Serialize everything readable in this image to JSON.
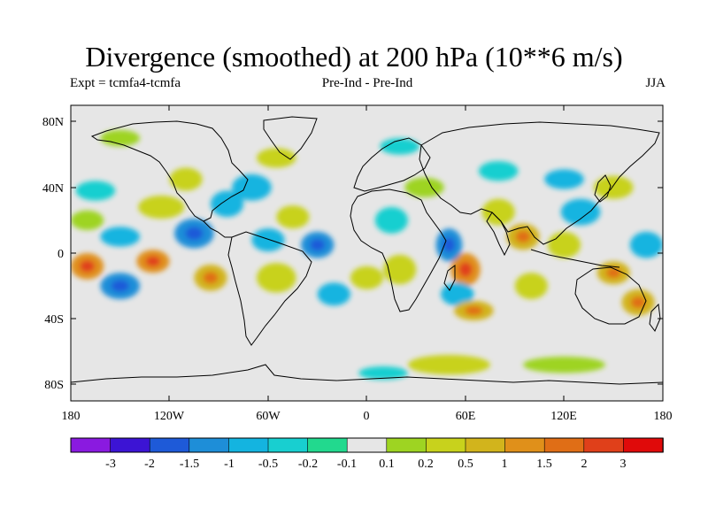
{
  "title": "Divergence (smoothed) at 200 hPa (10**6 m/s)",
  "expt": "Expt = tcmfa4-tcmfa",
  "period": "Pre-Ind - Pre-Ind",
  "season": "JJA",
  "colors": {
    "background": "#e6e6e6",
    "coast": "#000000",
    "scale": [
      "#8a1ae0",
      "#3c14d4",
      "#1e5ad8",
      "#1e8ed8",
      "#14b4e0",
      "#18cfd0",
      "#22d98e",
      "#e6e6e6",
      "#9ed422",
      "#c8d21c",
      "#d2b41c",
      "#e0901a",
      "#e06e16",
      "#e0401a",
      "#e00a0a"
    ]
  },
  "chart_data": {
    "type": "heatmap",
    "field": "200 hPa divergence anomaly (smoothed)",
    "units": "10**6 m/s",
    "x_ticks": [
      "180",
      "120W",
      "60W",
      "0",
      "60E",
      "120E",
      "180"
    ],
    "y_ticks": [
      "80N",
      "40N",
      "0",
      "40S",
      "80S"
    ],
    "xlim": [
      -180,
      180
    ],
    "ylim": [
      -90,
      90
    ],
    "colorbar_levels": [
      "-3",
      "-2",
      "-1.5",
      "-1",
      "-0.5",
      "-0.2",
      "-0.1",
      "0.1",
      "0.2",
      "0.5",
      "1",
      "1.5",
      "2",
      "3"
    ],
    "blobs": [
      {
        "lon": -170,
        "lat": -8,
        "rx": 10,
        "ry": 8,
        "v": 1.5
      },
      {
        "lon": -150,
        "lat": -20,
        "rx": 12,
        "ry": 8,
        "v": -1
      },
      {
        "lon": -130,
        "lat": -5,
        "rx": 10,
        "ry": 7,
        "v": 1.5
      },
      {
        "lon": -150,
        "lat": 10,
        "rx": 12,
        "ry": 6,
        "v": -0.5
      },
      {
        "lon": -125,
        "lat": 28,
        "rx": 14,
        "ry": 7,
        "v": 0.5
      },
      {
        "lon": -165,
        "lat": 38,
        "rx": 12,
        "ry": 6,
        "v": -0.2
      },
      {
        "lon": -170,
        "lat": 20,
        "rx": 10,
        "ry": 6,
        "v": 0.2
      },
      {
        "lon": -105,
        "lat": 12,
        "rx": 12,
        "ry": 9,
        "v": -1
      },
      {
        "lon": -95,
        "lat": -15,
        "rx": 10,
        "ry": 8,
        "v": 1
      },
      {
        "lon": -85,
        "lat": 30,
        "rx": 10,
        "ry": 8,
        "v": -0.5
      },
      {
        "lon": -110,
        "lat": 45,
        "rx": 10,
        "ry": 7,
        "v": 0.5
      },
      {
        "lon": -60,
        "lat": 8,
        "rx": 10,
        "ry": 7,
        "v": -0.5
      },
      {
        "lon": -55,
        "lat": -15,
        "rx": 12,
        "ry": 9,
        "v": 0.5
      },
      {
        "lon": -45,
        "lat": 22,
        "rx": 10,
        "ry": 7,
        "v": 0.5
      },
      {
        "lon": -70,
        "lat": 40,
        "rx": 12,
        "ry": 8,
        "v": -0.5
      },
      {
        "lon": -55,
        "lat": 58,
        "rx": 12,
        "ry": 6,
        "v": 0.5
      },
      {
        "lon": -30,
        "lat": 5,
        "rx": 10,
        "ry": 8,
        "v": -1
      },
      {
        "lon": -20,
        "lat": -25,
        "rx": 10,
        "ry": 7,
        "v": -0.5
      },
      {
        "lon": 0,
        "lat": -15,
        "rx": 10,
        "ry": 7,
        "v": 0.5
      },
      {
        "lon": 20,
        "lat": -10,
        "rx": 10,
        "ry": 9,
        "v": 0.5
      },
      {
        "lon": 15,
        "lat": 20,
        "rx": 10,
        "ry": 8,
        "v": -0.2
      },
      {
        "lon": 35,
        "lat": 40,
        "rx": 12,
        "ry": 6,
        "v": 0.2
      },
      {
        "lon": 60,
        "lat": -10,
        "rx": 9,
        "ry": 10,
        "v": 1.5
      },
      {
        "lon": 50,
        "lat": 5,
        "rx": 8,
        "ry": 10,
        "v": -1
      },
      {
        "lon": 55,
        "lat": -25,
        "rx": 10,
        "ry": 7,
        "v": -0.5
      },
      {
        "lon": 65,
        "lat": -35,
        "rx": 12,
        "ry": 6,
        "v": 1
      },
      {
        "lon": 80,
        "lat": 25,
        "rx": 10,
        "ry": 8,
        "v": 0.5
      },
      {
        "lon": 95,
        "lat": 10,
        "rx": 10,
        "ry": 8,
        "v": 1
      },
      {
        "lon": 100,
        "lat": -20,
        "rx": 10,
        "ry": 8,
        "v": 0.5
      },
      {
        "lon": 130,
        "lat": 25,
        "rx": 12,
        "ry": 8,
        "v": -0.5
      },
      {
        "lon": 120,
        "lat": 5,
        "rx": 10,
        "ry": 8,
        "v": 0.5
      },
      {
        "lon": 150,
        "lat": -12,
        "rx": 10,
        "ry": 7,
        "v": 1
      },
      {
        "lon": 170,
        "lat": 5,
        "rx": 10,
        "ry": 8,
        "v": -0.5
      },
      {
        "lon": 165,
        "lat": -30,
        "rx": 10,
        "ry": 8,
        "v": 1
      },
      {
        "lon": 150,
        "lat": 40,
        "rx": 12,
        "ry": 7,
        "v": 0.5
      },
      {
        "lon": 120,
        "lat": 45,
        "rx": 12,
        "ry": 6,
        "v": -0.5
      },
      {
        "lon": 80,
        "lat": 50,
        "rx": 12,
        "ry": 6,
        "v": -0.2
      },
      {
        "lon": 20,
        "lat": 65,
        "rx": 12,
        "ry": 5,
        "v": -0.2
      },
      {
        "lon": -150,
        "lat": 70,
        "rx": 12,
        "ry": 5,
        "v": 0.2
      },
      {
        "lon": 50,
        "lat": -68,
        "rx": 25,
        "ry": 6,
        "v": 0.5
      },
      {
        "lon": 120,
        "lat": -68,
        "rx": 25,
        "ry": 5,
        "v": 0.2
      },
      {
        "lon": 10,
        "lat": -73,
        "rx": 15,
        "ry": 4,
        "v": -0.2
      }
    ]
  }
}
